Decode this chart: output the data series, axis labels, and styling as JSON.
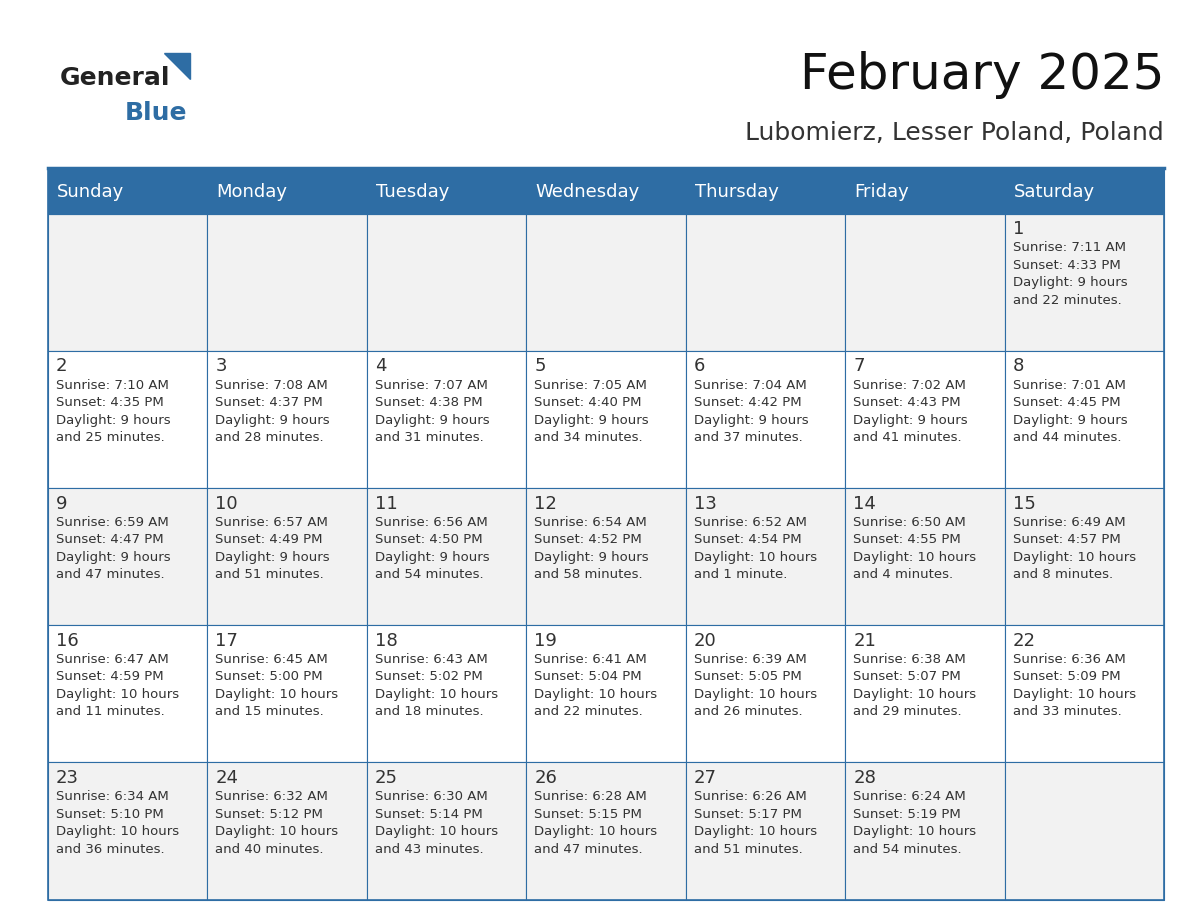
{
  "title": "February 2025",
  "subtitle": "Lubomierz, Lesser Poland, Poland",
  "header_bg": "#2E6DA4",
  "header_text_color": "#FFFFFF",
  "cell_bg": "#F2F2F2",
  "cell_bg_alt": "#FFFFFF",
  "border_color": "#2E6DA4",
  "day_text_color": "#333333",
  "info_text_color": "#333333",
  "days_of_week": [
    "Sunday",
    "Monday",
    "Tuesday",
    "Wednesday",
    "Thursday",
    "Friday",
    "Saturday"
  ],
  "title_fontsize": 36,
  "subtitle_fontsize": 18,
  "header_fontsize": 13,
  "day_number_fontsize": 13,
  "info_fontsize": 9.5,
  "logo_general_color": "#222222",
  "logo_blue_color": "#2E6DA4",
  "weeks": [
    [
      {
        "day": null,
        "info": ""
      },
      {
        "day": null,
        "info": ""
      },
      {
        "day": null,
        "info": ""
      },
      {
        "day": null,
        "info": ""
      },
      {
        "day": null,
        "info": ""
      },
      {
        "day": null,
        "info": ""
      },
      {
        "day": 1,
        "info": "Sunrise: 7:11 AM\nSunset: 4:33 PM\nDaylight: 9 hours\nand 22 minutes."
      }
    ],
    [
      {
        "day": 2,
        "info": "Sunrise: 7:10 AM\nSunset: 4:35 PM\nDaylight: 9 hours\nand 25 minutes."
      },
      {
        "day": 3,
        "info": "Sunrise: 7:08 AM\nSunset: 4:37 PM\nDaylight: 9 hours\nand 28 minutes."
      },
      {
        "day": 4,
        "info": "Sunrise: 7:07 AM\nSunset: 4:38 PM\nDaylight: 9 hours\nand 31 minutes."
      },
      {
        "day": 5,
        "info": "Sunrise: 7:05 AM\nSunset: 4:40 PM\nDaylight: 9 hours\nand 34 minutes."
      },
      {
        "day": 6,
        "info": "Sunrise: 7:04 AM\nSunset: 4:42 PM\nDaylight: 9 hours\nand 37 minutes."
      },
      {
        "day": 7,
        "info": "Sunrise: 7:02 AM\nSunset: 4:43 PM\nDaylight: 9 hours\nand 41 minutes."
      },
      {
        "day": 8,
        "info": "Sunrise: 7:01 AM\nSunset: 4:45 PM\nDaylight: 9 hours\nand 44 minutes."
      }
    ],
    [
      {
        "day": 9,
        "info": "Sunrise: 6:59 AM\nSunset: 4:47 PM\nDaylight: 9 hours\nand 47 minutes."
      },
      {
        "day": 10,
        "info": "Sunrise: 6:57 AM\nSunset: 4:49 PM\nDaylight: 9 hours\nand 51 minutes."
      },
      {
        "day": 11,
        "info": "Sunrise: 6:56 AM\nSunset: 4:50 PM\nDaylight: 9 hours\nand 54 minutes."
      },
      {
        "day": 12,
        "info": "Sunrise: 6:54 AM\nSunset: 4:52 PM\nDaylight: 9 hours\nand 58 minutes."
      },
      {
        "day": 13,
        "info": "Sunrise: 6:52 AM\nSunset: 4:54 PM\nDaylight: 10 hours\nand 1 minute."
      },
      {
        "day": 14,
        "info": "Sunrise: 6:50 AM\nSunset: 4:55 PM\nDaylight: 10 hours\nand 4 minutes."
      },
      {
        "day": 15,
        "info": "Sunrise: 6:49 AM\nSunset: 4:57 PM\nDaylight: 10 hours\nand 8 minutes."
      }
    ],
    [
      {
        "day": 16,
        "info": "Sunrise: 6:47 AM\nSunset: 4:59 PM\nDaylight: 10 hours\nand 11 minutes."
      },
      {
        "day": 17,
        "info": "Sunrise: 6:45 AM\nSunset: 5:00 PM\nDaylight: 10 hours\nand 15 minutes."
      },
      {
        "day": 18,
        "info": "Sunrise: 6:43 AM\nSunset: 5:02 PM\nDaylight: 10 hours\nand 18 minutes."
      },
      {
        "day": 19,
        "info": "Sunrise: 6:41 AM\nSunset: 5:04 PM\nDaylight: 10 hours\nand 22 minutes."
      },
      {
        "day": 20,
        "info": "Sunrise: 6:39 AM\nSunset: 5:05 PM\nDaylight: 10 hours\nand 26 minutes."
      },
      {
        "day": 21,
        "info": "Sunrise: 6:38 AM\nSunset: 5:07 PM\nDaylight: 10 hours\nand 29 minutes."
      },
      {
        "day": 22,
        "info": "Sunrise: 6:36 AM\nSunset: 5:09 PM\nDaylight: 10 hours\nand 33 minutes."
      }
    ],
    [
      {
        "day": 23,
        "info": "Sunrise: 6:34 AM\nSunset: 5:10 PM\nDaylight: 10 hours\nand 36 minutes."
      },
      {
        "day": 24,
        "info": "Sunrise: 6:32 AM\nSunset: 5:12 PM\nDaylight: 10 hours\nand 40 minutes."
      },
      {
        "day": 25,
        "info": "Sunrise: 6:30 AM\nSunset: 5:14 PM\nDaylight: 10 hours\nand 43 minutes."
      },
      {
        "day": 26,
        "info": "Sunrise: 6:28 AM\nSunset: 5:15 PM\nDaylight: 10 hours\nand 47 minutes."
      },
      {
        "day": 27,
        "info": "Sunrise: 6:26 AM\nSunset: 5:17 PM\nDaylight: 10 hours\nand 51 minutes."
      },
      {
        "day": 28,
        "info": "Sunrise: 6:24 AM\nSunset: 5:19 PM\nDaylight: 10 hours\nand 54 minutes."
      },
      {
        "day": null,
        "info": ""
      }
    ]
  ]
}
